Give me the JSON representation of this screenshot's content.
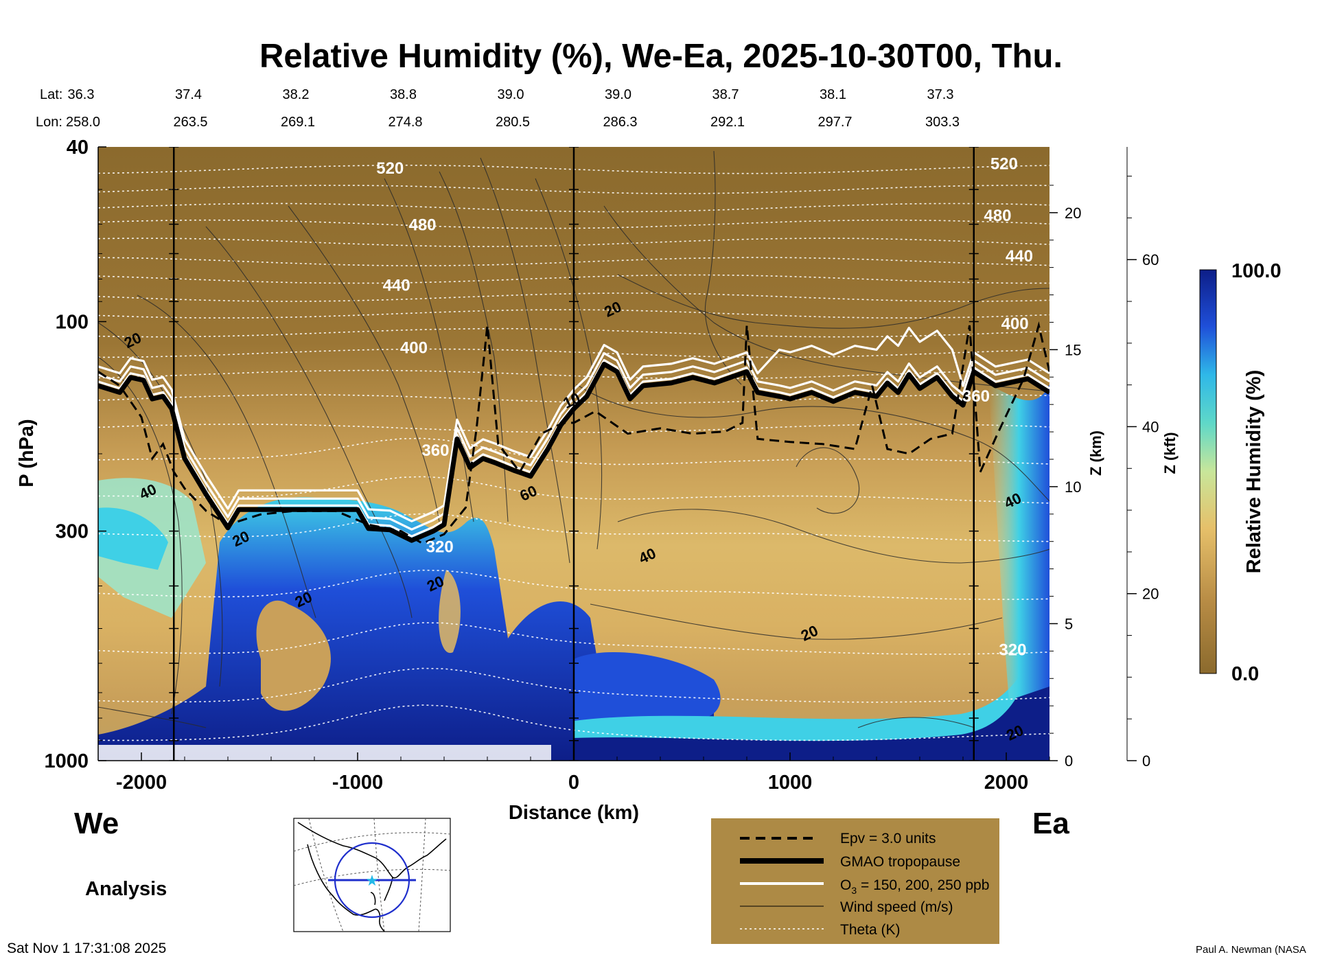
{
  "chart_data": {
    "type": "heatmap",
    "title": "Relative Humidity (%), We-Ea, 2025-10-30T00, Thu.",
    "xlabel": "Distance (km)",
    "ylabel": "P (hPa)",
    "y2label": "Z (km)",
    "y3label": "Z (kft)",
    "colorbar_label": "Relative Humidity (%)",
    "colorbar_max": "100.0",
    "colorbar_min": "0.0",
    "xlim": [
      -2200,
      2200
    ],
    "ylim_hpa": [
      1000,
      40
    ],
    "x_ticks": [
      "-2000",
      "-1000",
      "0",
      "1000",
      "2000"
    ],
    "x_tick_values": [
      -2000,
      -1000,
      0,
      1000,
      2000
    ],
    "y_ticks": [
      "40",
      "100",
      "300",
      "1000"
    ],
    "y_tick_values": [
      40,
      100,
      300,
      1000
    ],
    "z_km_ticks": [
      "0",
      "5",
      "10",
      "15",
      "20"
    ],
    "z_km_values": [
      0,
      5,
      10,
      15,
      20
    ],
    "z_kft_ticks": [
      "0",
      "20",
      "40",
      "60"
    ],
    "z_kft_values": [
      0,
      20,
      40,
      60
    ],
    "vertical_lines_km": [
      -1850,
      0,
      1850
    ],
    "lat_label": "Lat:",
    "lon_label": "Lon:",
    "lat": [
      "36.3",
      "37.4",
      "38.2",
      "38.8",
      "39.0",
      "39.0",
      "38.7",
      "38.1",
      "37.3"
    ],
    "lon": [
      "258.0",
      "263.5",
      "269.1",
      "274.8",
      "280.5",
      "286.3",
      "292.1",
      "297.7",
      "303.3"
    ],
    "theta_labels": [
      {
        "text": "520",
        "x": -850,
        "p": 46
      },
      {
        "text": "480",
        "x": -700,
        "p": 62
      },
      {
        "text": "440",
        "x": -820,
        "p": 85
      },
      {
        "text": "400",
        "x": -740,
        "p": 118
      },
      {
        "text": "360",
        "x": -640,
        "p": 202
      },
      {
        "text": "320",
        "x": -620,
        "p": 335
      },
      {
        "text": "520",
        "x": 1990,
        "p": 45
      },
      {
        "text": "480",
        "x": 1960,
        "p": 59
      },
      {
        "text": "440",
        "x": 2060,
        "p": 73
      },
      {
        "text": "400",
        "x": 2040,
        "p": 104
      },
      {
        "text": "360",
        "x": 1860,
        "p": 152
      },
      {
        "text": "320",
        "x": 2030,
        "p": 575
      }
    ],
    "wind_labels": [
      {
        "text": "20",
        "x": -2030,
        "p": 113
      },
      {
        "text": "40",
        "x": -1960,
        "p": 250
      },
      {
        "text": "20",
        "x": -1530,
        "p": 320
      },
      {
        "text": "20",
        "x": -1240,
        "p": 440
      },
      {
        "text": "20",
        "x": -630,
        "p": 405
      },
      {
        "text": "60",
        "x": -200,
        "p": 252
      },
      {
        "text": "10",
        "x": 0,
        "p": 155
      },
      {
        "text": "20",
        "x": 190,
        "p": 96
      },
      {
        "text": "40",
        "x": 350,
        "p": 350
      },
      {
        "text": "20",
        "x": 1100,
        "p": 525
      },
      {
        "text": "40",
        "x": 2040,
        "p": 262
      },
      {
        "text": "20",
        "x": 2050,
        "p": 885
      }
    ],
    "tropopause_km": [
      [
        -2200,
        140
      ],
      [
        -2100,
        145
      ],
      [
        -2050,
        134
      ],
      [
        -1990,
        136
      ],
      [
        -1950,
        150
      ],
      [
        -1900,
        148
      ],
      [
        -1860,
        158
      ],
      [
        -1800,
        205
      ],
      [
        -1700,
        248
      ],
      [
        -1600,
        295
      ],
      [
        -1550,
        268
      ],
      [
        -1450,
        268
      ],
      [
        -1300,
        268
      ],
      [
        -1100,
        268
      ],
      [
        -1000,
        268
      ],
      [
        -950,
        296
      ],
      [
        -850,
        298
      ],
      [
        -750,
        315
      ],
      [
        -650,
        300
      ],
      [
        -600,
        290
      ],
      [
        -540,
        185
      ],
      [
        -480,
        215
      ],
      [
        -420,
        205
      ],
      [
        -360,
        210
      ],
      [
        -280,
        218
      ],
      [
        -200,
        225
      ],
      [
        -120,
        195
      ],
      [
        -60,
        172
      ],
      [
        0,
        158
      ],
      [
        60,
        148
      ],
      [
        140,
        125
      ],
      [
        200,
        130
      ],
      [
        260,
        150
      ],
      [
        320,
        140
      ],
      [
        450,
        138
      ],
      [
        550,
        134
      ],
      [
        650,
        138
      ],
      [
        800,
        130
      ],
      [
        850,
        145
      ],
      [
        950,
        148
      ],
      [
        1000,
        150
      ],
      [
        1100,
        145
      ],
      [
        1200,
        152
      ],
      [
        1300,
        145
      ],
      [
        1400,
        148
      ],
      [
        1450,
        138
      ],
      [
        1500,
        145
      ],
      [
        1550,
        132
      ],
      [
        1600,
        142
      ],
      [
        1680,
        134
      ],
      [
        1750,
        148
      ],
      [
        1800,
        155
      ],
      [
        1850,
        130
      ],
      [
        1950,
        140
      ],
      [
        2100,
        135
      ],
      [
        2200,
        145
      ]
    ],
    "epv_km": [
      [
        -2200,
        130
      ],
      [
        -2100,
        140
      ],
      [
        -2000,
        165
      ],
      [
        -1950,
        205
      ],
      [
        -1900,
        190
      ],
      [
        -1850,
        220
      ],
      [
        -1800,
        240
      ],
      [
        -1700,
        270
      ],
      [
        -1600,
        290
      ],
      [
        -1450,
        275
      ],
      [
        -1300,
        270
      ],
      [
        -1100,
        270
      ],
      [
        -950,
        290
      ],
      [
        -800,
        300
      ],
      [
        -700,
        320
      ],
      [
        -600,
        305
      ],
      [
        -500,
        265
      ],
      [
        -450,
        175
      ],
      [
        -400,
        102
      ],
      [
        -350,
        190
      ],
      [
        -250,
        220
      ],
      [
        -150,
        180
      ],
      [
        -50,
        170
      ],
      [
        0,
        170
      ],
      [
        100,
        160
      ],
      [
        250,
        180
      ],
      [
        400,
        175
      ],
      [
        550,
        180
      ],
      [
        700,
        178
      ],
      [
        780,
        170
      ],
      [
        800,
        102
      ],
      [
        850,
        185
      ],
      [
        1000,
        188
      ],
      [
        1150,
        190
      ],
      [
        1300,
        195
      ],
      [
        1380,
        140
      ],
      [
        1450,
        195
      ],
      [
        1550,
        200
      ],
      [
        1650,
        185
      ],
      [
        1750,
        180
      ],
      [
        1830,
        102
      ],
      [
        1880,
        220
      ],
      [
        1960,
        180
      ],
      [
        2080,
        135
      ],
      [
        2150,
        102
      ],
      [
        2200,
        130
      ]
    ],
    "colors": {
      "dry_dark": "#8b6a2d",
      "dry_mid": "#b88c45",
      "dry_light": "#e0bf6c",
      "wet_light": "#9ee3c8",
      "wet_cyan": "#3fd0e6",
      "wet_blue": "#1f4fd9",
      "wet_dark": "#0d1e88",
      "legend_bg": "#ad8a45"
    }
  },
  "labels": {
    "west": "We",
    "east": "Ea",
    "analysis": "Analysis",
    "timestamp": "Sat Nov  1 17:31:08 2025",
    "credit": "Paul A. Newman (NASA"
  },
  "legend": {
    "epv": "Epv = 3.0 units",
    "tropopause": "GMAO tropopause",
    "o3_prefix": "O",
    "o3_sub": "3",
    "o3_suffix": " = 150, 200, 250 ppb",
    "wind": "Wind speed (m/s)",
    "theta": "Theta (K)"
  }
}
